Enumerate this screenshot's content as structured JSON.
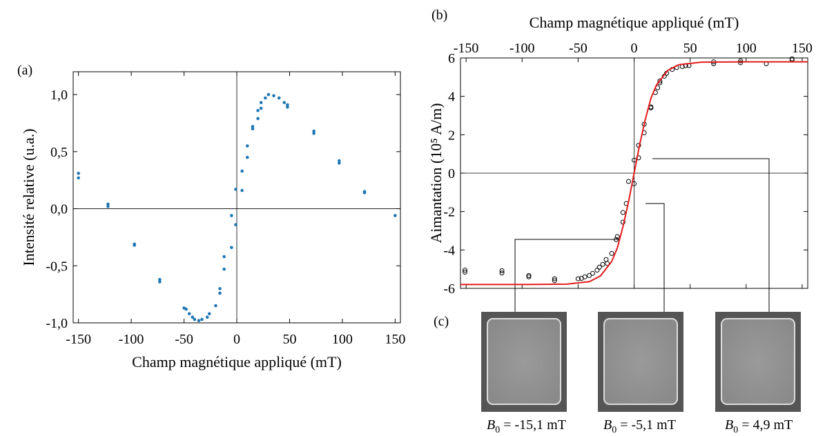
{
  "panel_label": "(c)",
  "chart_data": [
    {
      "type": "scatter",
      "panel_label": "(a)",
      "xlabel": "Champ magnétique appliqué (mT)",
      "ylabel": "Intensité relative (u.a.)",
      "x_axis": "bottom",
      "zero_lines": true,
      "xlim": [
        -155,
        155
      ],
      "ylim": [
        -1.0,
        1.2
      ],
      "xticks": [
        -150,
        -100,
        -50,
        0,
        50,
        100,
        150
      ],
      "yticks": [
        {
          "value": -1,
          "label": "-1,0"
        },
        {
          "value": -0.5,
          "label": "-0,5"
        },
        {
          "value": 0,
          "label": "0,0"
        },
        {
          "value": 0.5,
          "label": "0,5"
        },
        {
          "value": 1,
          "label": "1,0"
        }
      ],
      "series": [
        {
          "type": "scatter",
          "marker": "dot",
          "color": "#1f77b4",
          "x": [
            -150,
            -150,
            -122,
            -122,
            -97,
            -97,
            -73,
            -73,
            -50,
            -48,
            -45,
            -42,
            -40,
            -36,
            -33,
            -28,
            -26,
            -20,
            -16,
            -16,
            -12,
            -12,
            -5,
            -5,
            -1,
            -1,
            5,
            5,
            10,
            10,
            15,
            15,
            20,
            20,
            23,
            23,
            27,
            30,
            35,
            40,
            45,
            48,
            48,
            73,
            73,
            97,
            97,
            121,
            121,
            150
          ],
          "values": [
            0.31,
            0.27,
            0.04,
            0.02,
            -0.31,
            -0.32,
            -0.62,
            -0.64,
            -0.87,
            -0.88,
            -0.92,
            -0.95,
            -0.97,
            -0.98,
            -0.97,
            -0.95,
            -0.92,
            -0.85,
            -0.7,
            -0.74,
            -0.42,
            -0.53,
            -0.34,
            -0.06,
            -0.14,
            0.17,
            0.33,
            0.16,
            0.45,
            0.55,
            0.7,
            0.72,
            0.79,
            0.86,
            0.88,
            0.93,
            0.97,
            1.0,
            0.99,
            0.97,
            0.93,
            0.91,
            0.89,
            0.66,
            0.68,
            0.4,
            0.42,
            0.14,
            0.15,
            -0.06
          ]
        }
      ]
    },
    {
      "type": "scatter",
      "panel_label": "(b)",
      "xlabel": "Champ magnétique appliqué (mT)",
      "ylabel": "Aimantation (10⁵ A/m)",
      "x_axis": "top",
      "zero_lines": true,
      "xlim": [
        -155,
        155
      ],
      "ylim": [
        -6,
        6
      ],
      "xticks": [
        -150,
        -100,
        -50,
        0,
        50,
        100,
        150
      ],
      "yticks": [
        -6,
        -4,
        -2,
        0,
        2,
        4,
        6
      ],
      "series": [
        {
          "type": "scatter",
          "marker": "open-circle",
          "color": "#000000",
          "x": [
            -151,
            -151,
            -118,
            -118,
            -94,
            -94,
            -71,
            -71,
            -50,
            -47,
            -44,
            -40,
            -37,
            -33,
            -31,
            -28,
            -25,
            -24,
            -20,
            -16,
            -15,
            -10,
            -10,
            -7,
            -5,
            0,
            0,
            4,
            4,
            9,
            9,
            15,
            15,
            19,
            21,
            23,
            23,
            27,
            29,
            34,
            38,
            43,
            46,
            49,
            71,
            71,
            95,
            95,
            118,
            141,
            141
          ],
          "values": [
            -5.05,
            -5.15,
            -5.08,
            -5.2,
            -5.33,
            -5.4,
            -5.5,
            -5.6,
            -5.5,
            -5.48,
            -5.4,
            -5.33,
            -5.22,
            -5.05,
            -4.9,
            -4.75,
            -4.5,
            -4.7,
            -4.18,
            -3.46,
            -3.3,
            -2.55,
            -2.05,
            -1.58,
            -0.43,
            -0.55,
            0.68,
            0.8,
            1.45,
            2.1,
            2.55,
            3.4,
            3.45,
            4.2,
            4.45,
            4.8,
            4.7,
            5.05,
            5.2,
            5.4,
            5.5,
            5.55,
            5.6,
            5.6,
            5.7,
            5.8,
            5.75,
            5.85,
            5.7,
            5.95,
            5.9
          ]
        },
        {
          "type": "line",
          "color": "#e41a1c",
          "x": [
            -155,
            -100,
            -60,
            -40,
            -30,
            -20,
            -15,
            -10,
            -5,
            0,
            5,
            10,
            15,
            20,
            30,
            40,
            60,
            100,
            155
          ],
          "values": [
            -5.8,
            -5.8,
            -5.78,
            -5.65,
            -5.35,
            -4.6,
            -3.9,
            -2.8,
            -1.5,
            0,
            1.5,
            2.8,
            3.9,
            4.6,
            5.35,
            5.65,
            5.78,
            5.8,
            5.8
          ]
        }
      ]
    }
  ],
  "images": [
    {
      "caption": {
        "symbol": "B",
        "subscript": "0",
        "value": "= -15,1 mT"
      }
    },
    {
      "caption": {
        "symbol": "B",
        "subscript": "0",
        "value": "= -5,1 mT"
      }
    },
    {
      "caption": {
        "symbol": "B",
        "subscript": "0",
        "value": "= 4,9 mT"
      }
    }
  ]
}
